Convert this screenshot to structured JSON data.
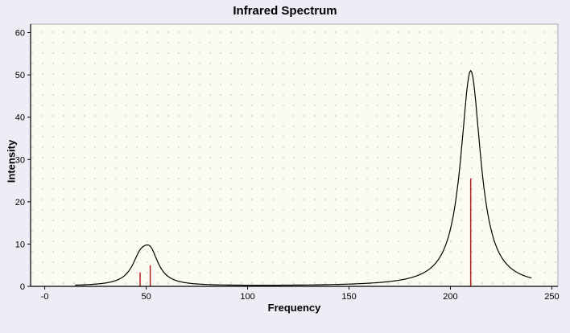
{
  "chart_data": {
    "type": "line",
    "title": "Infrared Spectrum",
    "xlabel": "Frequency",
    "ylabel": "Intensity",
    "xlim": [
      -7,
      253
    ],
    "ylim": [
      0,
      62
    ],
    "grid": "dotted",
    "legend": "none",
    "x_ticks": [
      {
        "value": 0,
        "label": "-0"
      },
      {
        "value": 50,
        "label": "50"
      },
      {
        "value": 100,
        "label": "100"
      },
      {
        "value": 150,
        "label": "150"
      },
      {
        "value": 200,
        "label": "200"
      },
      {
        "value": 250,
        "label": "250"
      }
    ],
    "y_ticks": [
      {
        "value": 0,
        "label": "0"
      },
      {
        "value": 10,
        "label": "10"
      },
      {
        "value": 20,
        "label": "20"
      },
      {
        "value": 30,
        "label": "30"
      },
      {
        "value": 40,
        "label": "40"
      },
      {
        "value": 50,
        "label": "50"
      },
      {
        "value": 60,
        "label": "60"
      }
    ],
    "sticks": [
      {
        "x": 47,
        "intensity": 3.3
      },
      {
        "x": 52,
        "intensity": 5.0
      },
      {
        "x": 210,
        "intensity": 25.5
      }
    ],
    "curve_model": {
      "type": "lorentzian_sum",
      "peaks": [
        {
          "center": 47,
          "height": 5.2,
          "hwhm": 5
        },
        {
          "center": 52,
          "height": 6.8,
          "hwhm": 5
        },
        {
          "center": 210,
          "height": 51.0,
          "hwhm": 6
        }
      ],
      "x_range": [
        15,
        240
      ],
      "step": 0.5,
      "observed_maxima": [
        {
          "x": 50,
          "y": 10.5
        },
        {
          "x": 210,
          "y": 51.0
        }
      ]
    },
    "colors": {
      "curve": "#000000",
      "sticks": "#b22222",
      "plot_bg": "#fbfbf2",
      "page_bg": "#ededf6",
      "grid_dot": "#c7d0c5",
      "frame": "#a9a9b4",
      "axis": "#000000"
    }
  }
}
